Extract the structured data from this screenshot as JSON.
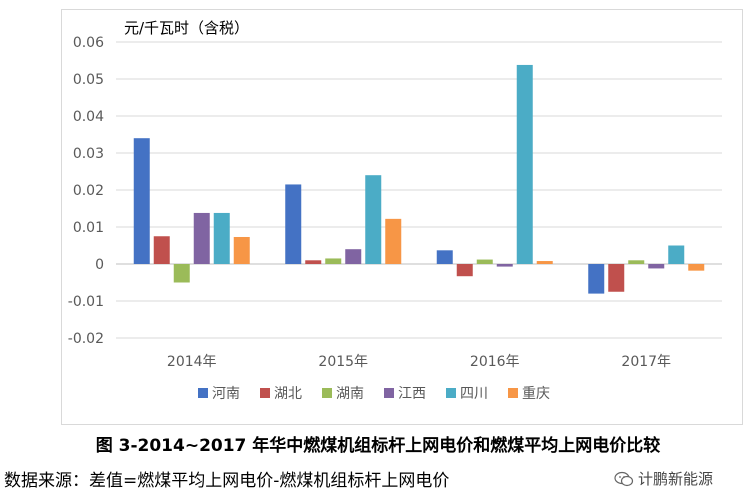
{
  "chart_data": {
    "type": "bar",
    "ylabel": "元/千瓦时（含税）",
    "ylim": [
      -0.02,
      0.06
    ],
    "ytick_step": 0.01,
    "yticks": [
      "-0.02",
      "-0.01",
      "0",
      "0.01",
      "0.02",
      "0.03",
      "0.04",
      "0.05",
      "0.06"
    ],
    "grid": true,
    "legend_position": "bottom",
    "categories": [
      "2014年",
      "2015年",
      "2016年",
      "2017年"
    ],
    "series": [
      {
        "name": "河南",
        "color": "#4472C4",
        "values": [
          0.034,
          0.0215,
          0.0037,
          -0.008
        ]
      },
      {
        "name": "湖北",
        "color": "#C0504D",
        "values": [
          0.0075,
          0.001,
          -0.0033,
          -0.0075
        ]
      },
      {
        "name": "湖南",
        "color": "#9BBB59",
        "values": [
          -0.005,
          0.0015,
          0.0012,
          0.001
        ]
      },
      {
        "name": "江西",
        "color": "#8064A2",
        "values": [
          0.0138,
          0.004,
          -0.0007,
          -0.0012
        ]
      },
      {
        "name": "四川",
        "color": "#4BACC6",
        "values": [
          0.0138,
          0.024,
          0.0538,
          0.005
        ]
      },
      {
        "name": "重庆",
        "color": "#F79646",
        "values": [
          0.0073,
          0.0122,
          0.0008,
          -0.0018
        ]
      }
    ]
  },
  "caption": "图 3-2014~2017 年华中燃煤机组标杆上网电价和燃煤平均上网电价比较",
  "source": "数据来源：差值=燃煤平均上网电价-燃煤机组标杆上网电价",
  "brand": "计鹏新能源"
}
